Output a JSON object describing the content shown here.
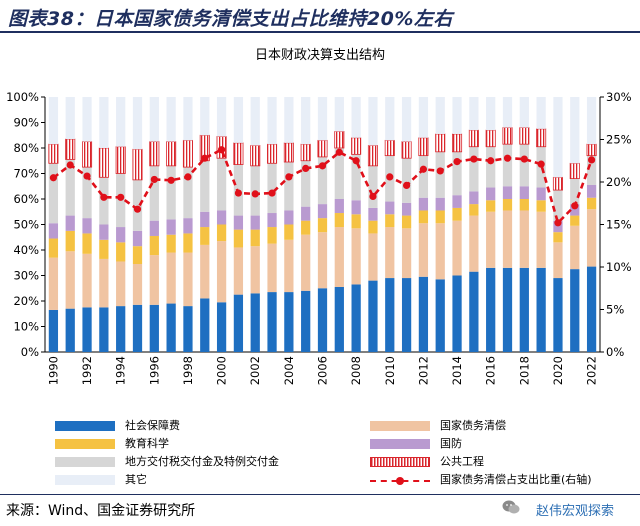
{
  "header": {
    "title": "图表38：日本国家债务清偿支出占比维持20%左右"
  },
  "colors": {
    "social_security": "#1e6fc1",
    "debt_service": "#f0c4a2",
    "education": "#f5c242",
    "defense": "#b99ad0",
    "local_transfer": "#d6d6d6",
    "public_works": "#ffffff",
    "public_works_stripe": "#d9262c",
    "other": "#e8eef7",
    "line": "#e0101a"
  },
  "chart_data": {
    "type": "bar",
    "title": "日本财政决算支出结构",
    "stacked": true,
    "x": [
      1990,
      1991,
      1992,
      1993,
      1994,
      1995,
      1996,
      1997,
      1998,
      1999,
      2000,
      2001,
      2002,
      2003,
      2004,
      2005,
      2006,
      2007,
      2008,
      2009,
      2010,
      2011,
      2012,
      2013,
      2014,
      2015,
      2016,
      2017,
      2018,
      2019,
      2020,
      2021,
      2022
    ],
    "x_tick_labels": [
      "1990",
      "1992",
      "1994",
      "1996",
      "1998",
      "2000",
      "2002",
      "2004",
      "2006",
      "2008",
      "2010",
      "2012",
      "2014",
      "2016",
      "2018",
      "2020",
      "2022"
    ],
    "ylim": [
      0,
      100
    ],
    "y_ticks": [
      "0%",
      "10%",
      "20%",
      "30%",
      "40%",
      "50%",
      "60%",
      "70%",
      "80%",
      "90%",
      "100%"
    ],
    "y2lim": [
      0,
      30
    ],
    "y2_ticks": [
      "0%",
      "5%",
      "10%",
      "15%",
      "20%",
      "25%",
      "30%"
    ],
    "grid": false,
    "legend_position": "bottom",
    "series": [
      {
        "name": "社会保障费",
        "key": "social_security",
        "values": [
          16.5,
          17,
          17.5,
          17.5,
          18,
          18.5,
          18.5,
          19,
          18,
          21,
          19.5,
          22.5,
          23,
          23.5,
          23.5,
          24,
          25,
          25.5,
          26.5,
          28,
          29,
          29,
          29.5,
          28.5,
          30,
          31.5,
          33,
          33,
          33,
          33,
          29,
          32.5,
          33.5
        ]
      },
      {
        "name": "国家债务清偿",
        "key": "debt_service",
        "values": [
          20.5,
          22.5,
          21,
          19,
          17.5,
          16,
          19.5,
          20,
          21,
          21,
          24,
          18.5,
          18.5,
          19,
          20.5,
          22,
          22,
          23.5,
          22,
          18.5,
          20,
          19.5,
          21,
          22,
          21.5,
          22,
          22,
          22.5,
          22.5,
          22,
          14,
          17,
          22.5
        ]
      },
      {
        "name": "教育科学",
        "key": "education",
        "values": [
          7.5,
          8,
          8,
          7.5,
          7.5,
          7,
          7.5,
          7,
          7.5,
          7,
          6.5,
          7,
          6.5,
          6.5,
          6,
          5.5,
          5.5,
          5.5,
          5.5,
          5,
          5,
          5,
          5,
          5,
          5,
          4.5,
          4.5,
          4.5,
          4.5,
          4.5,
          4,
          4,
          4.5
        ]
      },
      {
        "name": "国防",
        "key": "defense",
        "values": [
          6,
          6,
          6,
          6,
          6,
          6,
          6,
          6,
          6,
          6,
          5.5,
          5.5,
          5.5,
          5.5,
          5.5,
          5.5,
          5.5,
          5.5,
          5.5,
          5,
          5,
          5,
          5,
          5,
          5,
          5,
          5,
          5,
          5,
          5,
          4.5,
          4.5,
          5
        ]
      },
      {
        "name": "地方交付税交付金及特例交付金",
        "key": "local_transfer",
        "values": [
          23.5,
          22,
          20,
          18.5,
          21,
          20,
          21.5,
          21,
          20,
          20,
          20.5,
          20,
          19.5,
          19.5,
          19,
          18,
          18.5,
          20,
          18,
          16.5,
          18,
          17.5,
          16.5,
          18,
          17,
          17.5,
          16,
          16.5,
          16.5,
          16,
          12,
          10,
          11.5
        ]
      },
      {
        "name": "公共工程",
        "key": "public_works",
        "values": [
          7.5,
          8,
          10,
          11.5,
          10.5,
          12,
          9.5,
          9.5,
          10.5,
          10,
          8.5,
          8.5,
          8,
          7.5,
          7.5,
          6.5,
          6.5,
          6.5,
          6.5,
          8,
          6,
          6.5,
          7,
          7,
          7,
          6.5,
          6.5,
          6.5,
          6.5,
          7,
          5,
          6,
          4.5
        ]
      },
      {
        "name": "其它",
        "key": "other",
        "values": [
          18.5,
          16.5,
          17.5,
          20,
          19.5,
          20.5,
          17.5,
          17.5,
          17,
          15,
          15.5,
          18,
          19,
          18.5,
          18,
          18.5,
          17,
          13.5,
          16,
          19,
          17,
          17.5,
          16,
          14.5,
          14.5,
          13,
          13,
          12,
          12,
          12.5,
          31.5,
          26,
          18.5
        ]
      }
    ],
    "line_series": {
      "name": "国家债务清偿占支出比重(右轴)",
      "axis": "right",
      "values": [
        20.5,
        22,
        20.7,
        18.2,
        18.2,
        16.8,
        20.3,
        20.2,
        20.6,
        22.8,
        23.8,
        18.7,
        18.6,
        18.7,
        20.6,
        21.6,
        21.9,
        23.5,
        22.5,
        18.3,
        20.6,
        19.6,
        21.5,
        21.3,
        22.4,
        22.7,
        22.5,
        22.8,
        22.7,
        22.1,
        15.2,
        17.2,
        22.6
      ]
    }
  },
  "legend": [
    {
      "key": "social_security",
      "label": "社会保障费",
      "style": "solid"
    },
    {
      "key": "debt_service",
      "label": "国家债务清偿",
      "style": "solid"
    },
    {
      "key": "education",
      "label": "教育科学",
      "style": "solid"
    },
    {
      "key": "defense",
      "label": "国防",
      "style": "solid"
    },
    {
      "key": "local_transfer",
      "label": "地方交付税交付金及特例交付金",
      "style": "solid"
    },
    {
      "key": "public_works",
      "label": "公共工程",
      "style": "stripe"
    },
    {
      "key": "other",
      "label": "其它",
      "style": "solid"
    },
    {
      "key": "line",
      "label": "国家债务清偿占支出比重(右轴)",
      "style": "line"
    }
  ],
  "footer": {
    "source": "来源：Wind、国金证券研究所",
    "watermark": "赵伟宏观探索"
  }
}
